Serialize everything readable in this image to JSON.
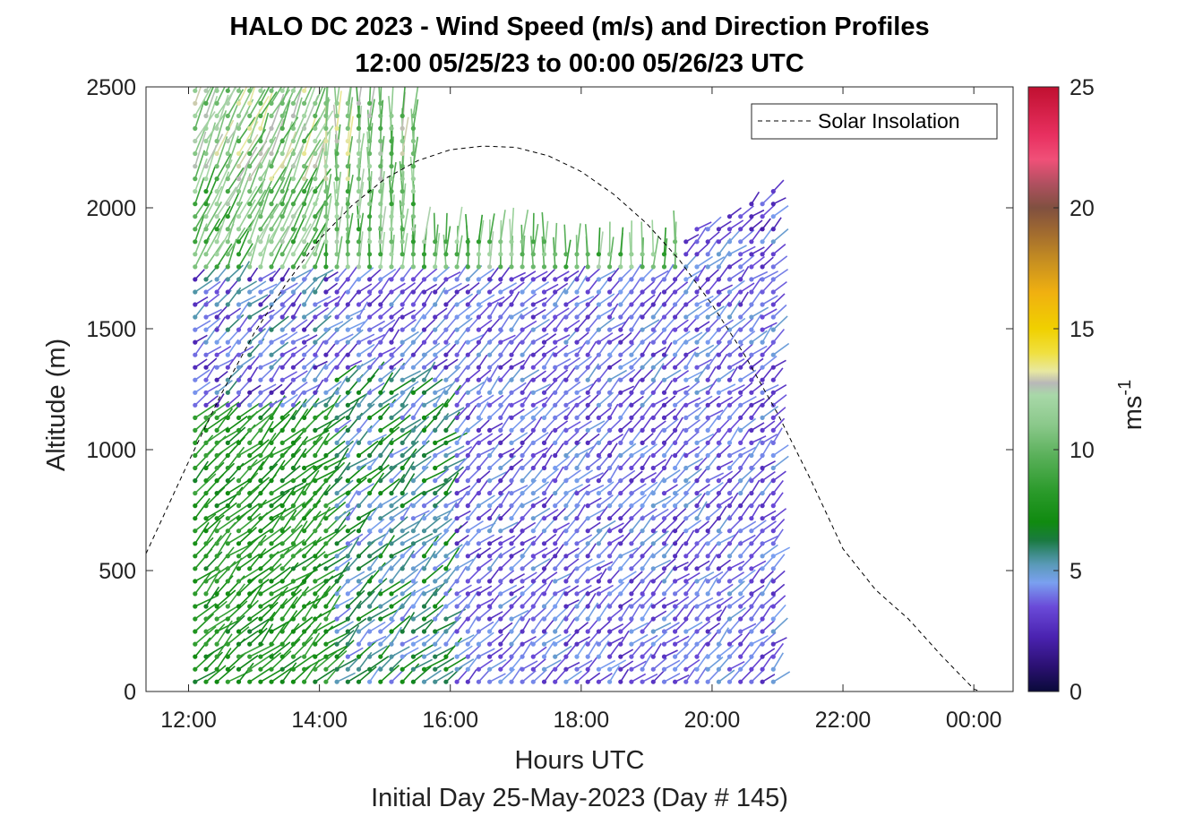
{
  "chart_data": {
    "type": "quiver",
    "title_line1": "HALO DC 2023 - Wind Speed (m/s) and Direction Profiles",
    "title_line2": "12:00 05/25/23 to 00:00 05/26/23  UTC",
    "xlabel": "Hours UTC",
    "xlabel2": "Initial Day 25-May-2023 (Day # 145)",
    "ylabel": "Altitude (m)",
    "colorbar_label": "ms",
    "colorbar_label_exponent": "-1",
    "x_ticks": [
      "12:00",
      "14:00",
      "16:00",
      "18:00",
      "20:00",
      "22:00",
      "00:00"
    ],
    "x_tick_hours": [
      12,
      14,
      16,
      18,
      20,
      22,
      24
    ],
    "xlim": [
      11.35,
      24.6
    ],
    "y_ticks": [
      "0",
      "500",
      "1000",
      "1500",
      "2000",
      "2500"
    ],
    "y_tick_values": [
      0,
      500,
      1000,
      1500,
      2000,
      2500
    ],
    "ylim": [
      0,
      2500
    ],
    "colorbar_ticks": [
      "0",
      "5",
      "10",
      "15",
      "20",
      "25"
    ],
    "colorbar_values": [
      0,
      5,
      10,
      15,
      20,
      25
    ],
    "clim": [
      0,
      25
    ],
    "legend": {
      "label": "Solar Insolation",
      "location": "top-right",
      "style": "dashed"
    },
    "grid": false,
    "solar_insolation_curve": {
      "hours": [
        11.35,
        12.0,
        12.5,
        13.0,
        13.5,
        14.0,
        14.5,
        15.0,
        15.5,
        16.0,
        16.5,
        17.0,
        17.5,
        18.0,
        18.5,
        19.0,
        19.5,
        20.0,
        20.5,
        21.0,
        21.5,
        22.0,
        22.5,
        23.0,
        23.5,
        24.0,
        24.1,
        24.6
      ],
      "altitude": [
        570,
        950,
        1230,
        1480,
        1690,
        1870,
        2010,
        2120,
        2195,
        2240,
        2255,
        2250,
        2215,
        2150,
        2055,
        1935,
        1785,
        1600,
        1390,
        1150,
        880,
        590,
        420,
        300,
        150,
        10,
        0,
        0
      ]
    },
    "profiles": {
      "time_start_hours": 12.1,
      "time_step_hours": 0.1667,
      "count": 54,
      "altitude_start_m": 40,
      "altitude_step_m": 52,
      "note_colors": "barb colour encodes wind speed on the colorbar scale"
    }
  }
}
